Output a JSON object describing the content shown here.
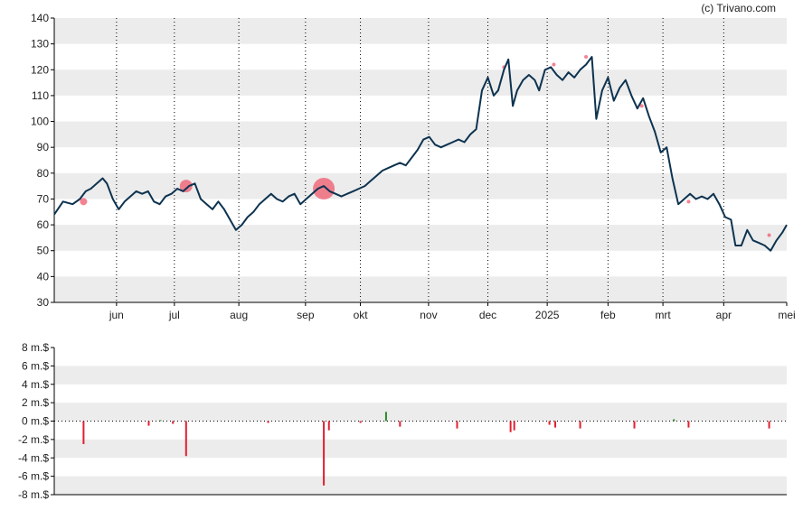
{
  "credit": "(c) Trivano.com",
  "colors": {
    "line": "#0d3350",
    "band": "#ececec",
    "bubble": "#f05a6e",
    "bar_negative": "#e02030",
    "bar_positive": "#2a8a2a",
    "axis": "#000000",
    "vgrid": "#000000"
  },
  "chart_data": [
    {
      "type": "line",
      "title": "",
      "xlabel": "",
      "ylabel": "",
      "ylim": [
        30,
        140
      ],
      "yticks": [
        "30",
        "40",
        "50",
        "60",
        "70",
        "80",
        "90",
        "100",
        "110",
        "120",
        "130",
        "140"
      ],
      "xticks": [
        {
          "label": "jun",
          "t": 0.085
        },
        {
          "label": "jul",
          "t": 0.164
        },
        {
          "label": "aug",
          "t": 0.252
        },
        {
          "label": "sep",
          "t": 0.343
        },
        {
          "label": "okt",
          "t": 0.418
        },
        {
          "label": "nov",
          "t": 0.511
        },
        {
          "label": "dec",
          "t": 0.592
        },
        {
          "label": "2025",
          "t": 0.673
        },
        {
          "label": "feb",
          "t": 0.756
        },
        {
          "label": "mrt",
          "t": 0.831
        },
        {
          "label": "apr",
          "t": 0.914
        },
        {
          "label": "mei",
          "t": 1.0
        }
      ],
      "grid": true,
      "series": [
        {
          "points": [
            [
              0.0,
              64
            ],
            [
              0.012,
              69
            ],
            [
              0.025,
              68
            ],
            [
              0.035,
              70
            ],
            [
              0.043,
              73
            ],
            [
              0.05,
              74
            ],
            [
              0.058,
              76
            ],
            [
              0.066,
              78
            ],
            [
              0.072,
              76
            ],
            [
              0.08,
              70
            ],
            [
              0.088,
              66
            ],
            [
              0.096,
              69
            ],
            [
              0.104,
              71
            ],
            [
              0.112,
              73
            ],
            [
              0.12,
              72
            ],
            [
              0.128,
              73
            ],
            [
              0.136,
              69
            ],
            [
              0.144,
              68
            ],
            [
              0.152,
              71
            ],
            [
              0.16,
              72
            ],
            [
              0.168,
              74
            ],
            [
              0.176,
              73
            ],
            [
              0.184,
              75
            ],
            [
              0.192,
              76
            ],
            [
              0.2,
              70
            ],
            [
              0.208,
              68
            ],
            [
              0.216,
              66
            ],
            [
              0.224,
              69
            ],
            [
              0.232,
              66
            ],
            [
              0.24,
              62
            ],
            [
              0.248,
              58
            ],
            [
              0.256,
              60
            ],
            [
              0.264,
              63
            ],
            [
              0.272,
              65
            ],
            [
              0.28,
              68
            ],
            [
              0.288,
              70
            ],
            [
              0.296,
              72
            ],
            [
              0.304,
              70
            ],
            [
              0.312,
              69
            ],
            [
              0.32,
              71
            ],
            [
              0.328,
              72
            ],
            [
              0.336,
              68
            ],
            [
              0.344,
              70
            ],
            [
              0.352,
              72
            ],
            [
              0.36,
              74
            ],
            [
              0.368,
              75
            ],
            [
              0.376,
              73
            ],
            [
              0.384,
              72
            ],
            [
              0.392,
              71
            ],
            [
              0.4,
              72
            ],
            [
              0.408,
              73
            ],
            [
              0.416,
              74
            ],
            [
              0.424,
              75
            ],
            [
              0.432,
              77
            ],
            [
              0.44,
              79
            ],
            [
              0.448,
              81
            ],
            [
              0.456,
              82
            ],
            [
              0.464,
              83
            ],
            [
              0.472,
              84
            ],
            [
              0.48,
              83
            ],
            [
              0.488,
              86
            ],
            [
              0.496,
              89
            ],
            [
              0.504,
              93
            ],
            [
              0.512,
              94
            ],
            [
              0.52,
              91
            ],
            [
              0.528,
              90
            ],
            [
              0.536,
              91
            ],
            [
              0.544,
              92
            ],
            [
              0.552,
              93
            ],
            [
              0.56,
              92
            ],
            [
              0.568,
              95
            ],
            [
              0.576,
              97
            ],
            [
              0.584,
              112
            ],
            [
              0.592,
              117
            ],
            [
              0.6,
              110
            ],
            [
              0.606,
              112
            ],
            [
              0.614,
              120
            ],
            [
              0.62,
              124
            ],
            [
              0.626,
              106
            ],
            [
              0.632,
              112
            ],
            [
              0.64,
              116
            ],
            [
              0.648,
              118
            ],
            [
              0.656,
              116
            ],
            [
              0.662,
              112
            ],
            [
              0.67,
              120
            ],
            [
              0.678,
              121
            ],
            [
              0.686,
              118
            ],
            [
              0.694,
              116
            ],
            [
              0.702,
              119
            ],
            [
              0.71,
              117
            ],
            [
              0.718,
              120
            ],
            [
              0.726,
              122
            ],
            [
              0.734,
              125
            ],
            [
              0.74,
              101
            ],
            [
              0.748,
              112
            ],
            [
              0.756,
              117
            ],
            [
              0.764,
              108
            ],
            [
              0.772,
              113
            ],
            [
              0.78,
              116
            ],
            [
              0.788,
              110
            ],
            [
              0.796,
              105
            ],
            [
              0.804,
              109
            ],
            [
              0.812,
              102
            ],
            [
              0.82,
              96
            ],
            [
              0.828,
              88
            ],
            [
              0.836,
              90
            ],
            [
              0.844,
              78
            ],
            [
              0.852,
              68
            ],
            [
              0.86,
              70
            ],
            [
              0.868,
              72
            ],
            [
              0.876,
              70
            ],
            [
              0.884,
              71
            ],
            [
              0.892,
              70
            ],
            [
              0.9,
              72
            ],
            [
              0.908,
              68
            ],
            [
              0.916,
              63
            ],
            [
              0.924,
              62
            ],
            [
              0.93,
              52
            ],
            [
              0.938,
              52
            ],
            [
              0.946,
              58
            ],
            [
              0.954,
              54
            ],
            [
              0.962,
              53
            ],
            [
              0.97,
              52
            ],
            [
              0.978,
              50
            ],
            [
              0.986,
              54
            ],
            [
              0.994,
              57
            ],
            [
              1.0,
              60
            ]
          ]
        }
      ],
      "bubbles": [
        {
          "t": 0.04,
          "v": 69,
          "r": 4
        },
        {
          "t": 0.18,
          "v": 75,
          "r": 7
        },
        {
          "t": 0.368,
          "v": 74,
          "r": 12
        },
        {
          "t": 0.614,
          "v": 121,
          "r": 2
        },
        {
          "t": 0.682,
          "v": 122,
          "r": 2
        },
        {
          "t": 0.726,
          "v": 125,
          "r": 2
        },
        {
          "t": 0.802,
          "v": 106,
          "r": 2
        },
        {
          "t": 0.866,
          "v": 69,
          "r": 2
        },
        {
          "t": 0.976,
          "v": 56,
          "r": 2
        }
      ]
    },
    {
      "type": "bar",
      "title": "",
      "xlabel": "",
      "ylabel": "",
      "ylim": [
        -8,
        8
      ],
      "yticks": [
        "8 m.$",
        "6 m.$",
        "4 m.$",
        "2 m.$",
        "0 m.$",
        "-2 m.$",
        "-4 m.$",
        "-6 m.$",
        "-8 m.$"
      ],
      "grid": true,
      "bars": [
        {
          "t": 0.04,
          "v": -2.5
        },
        {
          "t": 0.129,
          "v": -0.5
        },
        {
          "t": 0.145,
          "v": 0.1
        },
        {
          "t": 0.162,
          "v": -0.3
        },
        {
          "t": 0.18,
          "v": -3.8
        },
        {
          "t": 0.292,
          "v": -0.2
        },
        {
          "t": 0.368,
          "v": -7.0
        },
        {
          "t": 0.375,
          "v": -1.0
        },
        {
          "t": 0.418,
          "v": -0.2
        },
        {
          "t": 0.453,
          "v": 1.0
        },
        {
          "t": 0.472,
          "v": -0.6
        },
        {
          "t": 0.55,
          "v": -0.8
        },
        {
          "t": 0.623,
          "v": -1.2
        },
        {
          "t": 0.628,
          "v": -1.0
        },
        {
          "t": 0.676,
          "v": -0.4
        },
        {
          "t": 0.684,
          "v": -0.7
        },
        {
          "t": 0.718,
          "v": -0.8
        },
        {
          "t": 0.792,
          "v": -0.8
        },
        {
          "t": 0.846,
          "v": 0.2
        },
        {
          "t": 0.866,
          "v": -0.7
        },
        {
          "t": 0.976,
          "v": -0.8
        }
      ]
    }
  ]
}
